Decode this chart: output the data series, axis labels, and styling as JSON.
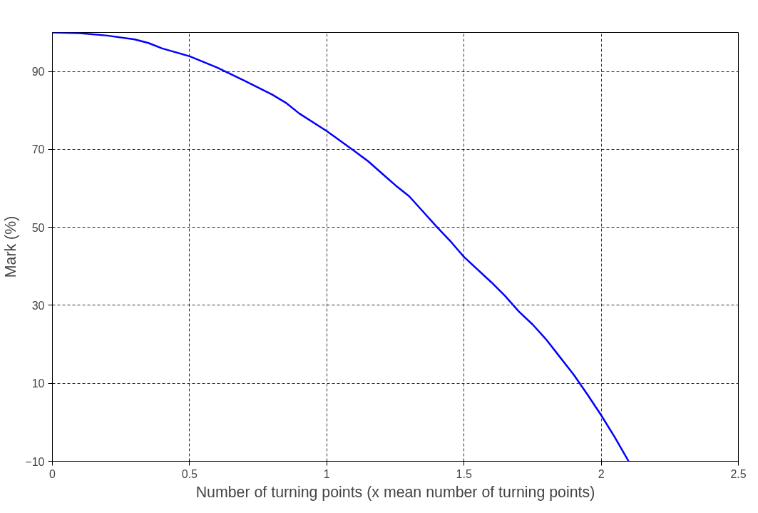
{
  "chart_data": {
    "type": "line",
    "xlabel": "Number of turning points (x mean number of turning points)",
    "ylabel": "Mark (%)",
    "x": [
      0,
      0.1,
      0.2,
      0.3,
      0.35,
      0.4,
      0.5,
      0.6,
      0.7,
      0.8,
      0.85,
      0.9,
      1.0,
      1.1,
      1.15,
      1.2,
      1.25,
      1.3,
      1.35,
      1.4,
      1.45,
      1.5,
      1.6,
      1.65,
      1.7,
      1.75,
      1.8,
      1.85,
      1.9,
      1.95,
      2.0,
      2.05,
      2.1
    ],
    "series": [
      {
        "color": "#0000ff",
        "values": [
          100,
          99.8,
          99.2,
          98.2,
          97.3,
          95.9,
          93.9,
          91,
          87.6,
          84.1,
          82,
          79.2,
          74.7,
          69.6,
          67,
          63.9,
          60.8,
          58,
          54.1,
          50.2,
          46.5,
          42.4,
          35.9,
          32.4,
          28.4,
          25.1,
          21.2,
          16.7,
          12.2,
          7.1,
          1.8,
          -3.9,
          -10
        ]
      }
    ],
    "xlim": [
      0,
      2.5
    ],
    "xticks": [
      0,
      0.5,
      1,
      1.5,
      2,
      2.5
    ],
    "ylim": [
      -10,
      100
    ],
    "yticks": [
      -10,
      10,
      30,
      50,
      70,
      90
    ],
    "grid": true,
    "marker": "none",
    "line_style": "solid"
  }
}
